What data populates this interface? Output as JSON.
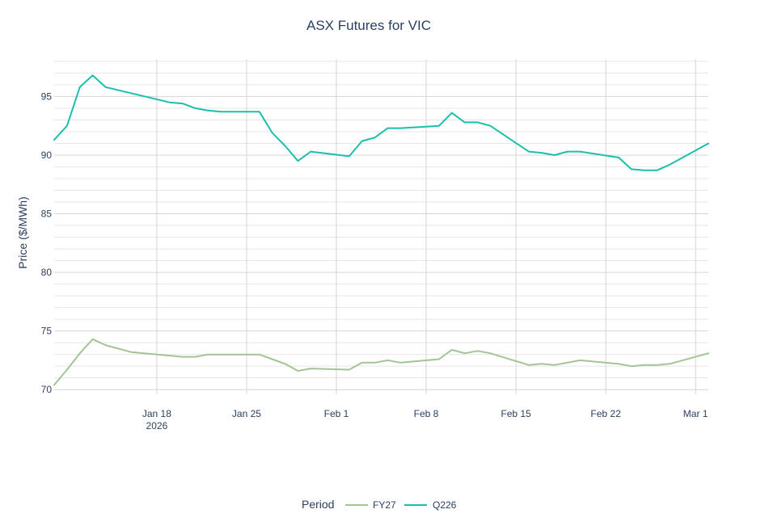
{
  "chart_data": {
    "type": "line",
    "title": "ASX Futures for VIC",
    "xlabel": "",
    "ylabel": "Price ($/MWh)",
    "xlim": [
      "2026-01-10",
      "2026-03-02"
    ],
    "ylim": [
      69.6,
      98.2
    ],
    "y_ticks": [
      70,
      75,
      80,
      85,
      90,
      95
    ],
    "x_ticks": [
      {
        "date": "2026-01-18",
        "label": "Jan 18",
        "sublabel": "2026"
      },
      {
        "date": "2026-01-25",
        "label": "Jan 25",
        "sublabel": ""
      },
      {
        "date": "2026-02-01",
        "label": "Feb 1",
        "sublabel": ""
      },
      {
        "date": "2026-02-08",
        "label": "Feb 8",
        "sublabel": ""
      },
      {
        "date": "2026-02-15",
        "label": "Feb 15",
        "sublabel": ""
      },
      {
        "date": "2026-02-22",
        "label": "Feb 22",
        "sublabel": ""
      },
      {
        "date": "2026-03-01",
        "label": "Mar 1",
        "sublabel": ""
      }
    ],
    "grid": true,
    "legend": {
      "title": "Period",
      "placement": "bottom-center"
    },
    "series": [
      {
        "name": "FY27",
        "color": "#a3c495",
        "x": [
          "2026-01-10",
          "2026-01-11",
          "2026-01-12",
          "2026-01-13",
          "2026-01-14",
          "2026-01-15",
          "2026-01-16",
          "2026-01-19",
          "2026-01-20",
          "2026-01-21",
          "2026-01-22",
          "2026-01-23",
          "2026-01-26",
          "2026-01-27",
          "2026-01-28",
          "2026-01-29",
          "2026-01-30",
          "2026-02-02",
          "2026-02-03",
          "2026-02-04",
          "2026-02-05",
          "2026-02-06",
          "2026-02-09",
          "2026-02-10",
          "2026-02-11",
          "2026-02-12",
          "2026-02-13",
          "2026-02-16",
          "2026-02-17",
          "2026-02-18",
          "2026-02-19",
          "2026-02-20",
          "2026-02-23",
          "2026-02-24",
          "2026-02-25",
          "2026-02-26",
          "2026-02-27",
          "2026-03-02"
        ],
        "y": [
          70.4,
          71.7,
          73.1,
          74.3,
          73.8,
          73.5,
          73.2,
          72.9,
          72.8,
          72.8,
          73.0,
          73.0,
          73.0,
          72.6,
          72.2,
          71.6,
          71.8,
          71.7,
          72.3,
          72.3,
          72.5,
          72.3,
          72.6,
          73.4,
          73.1,
          73.3,
          73.1,
          72.1,
          72.2,
          72.1,
          72.3,
          72.5,
          72.2,
          72.0,
          72.1,
          72.1,
          72.2,
          73.1
        ]
      },
      {
        "name": "Q226",
        "color": "#1bbfaa",
        "x": [
          "2026-01-10",
          "2026-01-11",
          "2026-01-12",
          "2026-01-13",
          "2026-01-14",
          "2026-01-19",
          "2026-01-20",
          "2026-01-21",
          "2026-01-22",
          "2026-01-23",
          "2026-01-26",
          "2026-01-27",
          "2026-01-28",
          "2026-01-29",
          "2026-01-30",
          "2026-02-02",
          "2026-02-03",
          "2026-02-04",
          "2026-02-05",
          "2026-02-06",
          "2026-02-09",
          "2026-02-10",
          "2026-02-11",
          "2026-02-12",
          "2026-02-13",
          "2026-02-16",
          "2026-02-17",
          "2026-02-18",
          "2026-02-19",
          "2026-02-20",
          "2026-02-23",
          "2026-02-24",
          "2026-02-25",
          "2026-02-26",
          "2026-02-27",
          "2026-03-02"
        ],
        "y": [
          91.3,
          92.5,
          95.8,
          96.8,
          95.8,
          94.5,
          94.4,
          94.0,
          93.8,
          93.7,
          93.7,
          91.9,
          90.8,
          89.5,
          90.3,
          89.9,
          91.2,
          91.5,
          92.3,
          92.3,
          92.5,
          93.6,
          92.8,
          92.8,
          92.5,
          90.3,
          90.2,
          90.0,
          90.3,
          90.3,
          89.8,
          88.8,
          88.7,
          88.7,
          89.2,
          91.0
        ]
      }
    ]
  }
}
